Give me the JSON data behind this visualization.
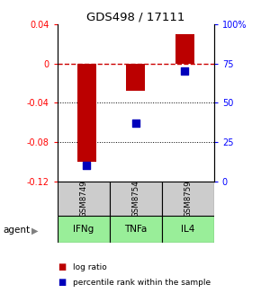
{
  "title": "GDS498 / 17111",
  "bar_positions": [
    1,
    2,
    3
  ],
  "bar_values": [
    -0.1,
    -0.028,
    0.03
  ],
  "percentile_values": [
    0.1,
    0.37,
    0.7
  ],
  "categories": [
    "IFNg",
    "TNFa",
    "IL4"
  ],
  "gsm_labels": [
    "GSM8749",
    "GSM8754",
    "GSM8759"
  ],
  "ylim_left": [
    -0.12,
    0.04
  ],
  "ylim_right": [
    0,
    1.0
  ],
  "bar_color": "#bb0000",
  "dot_color": "#0000bb",
  "zero_line_color": "#cc0000",
  "gsm_bg": "#cccccc",
  "agent_bg": "#99ee99",
  "left_yticks": [
    -0.12,
    -0.08,
    -0.04,
    0.0,
    0.04
  ],
  "right_yticks": [
    0,
    0.25,
    0.5,
    0.75,
    1.0
  ],
  "right_yticklabels": [
    "0",
    "25",
    "50",
    "75",
    "100%"
  ],
  "left_yticklabels": [
    "-0.12",
    "-0.08",
    "-0.04",
    "0",
    "0.04"
  ],
  "bar_width": 0.38,
  "dot_size": 30,
  "legend_red_label": "log ratio",
  "legend_blue_label": "percentile rank within the sample",
  "agent_label": "agent"
}
